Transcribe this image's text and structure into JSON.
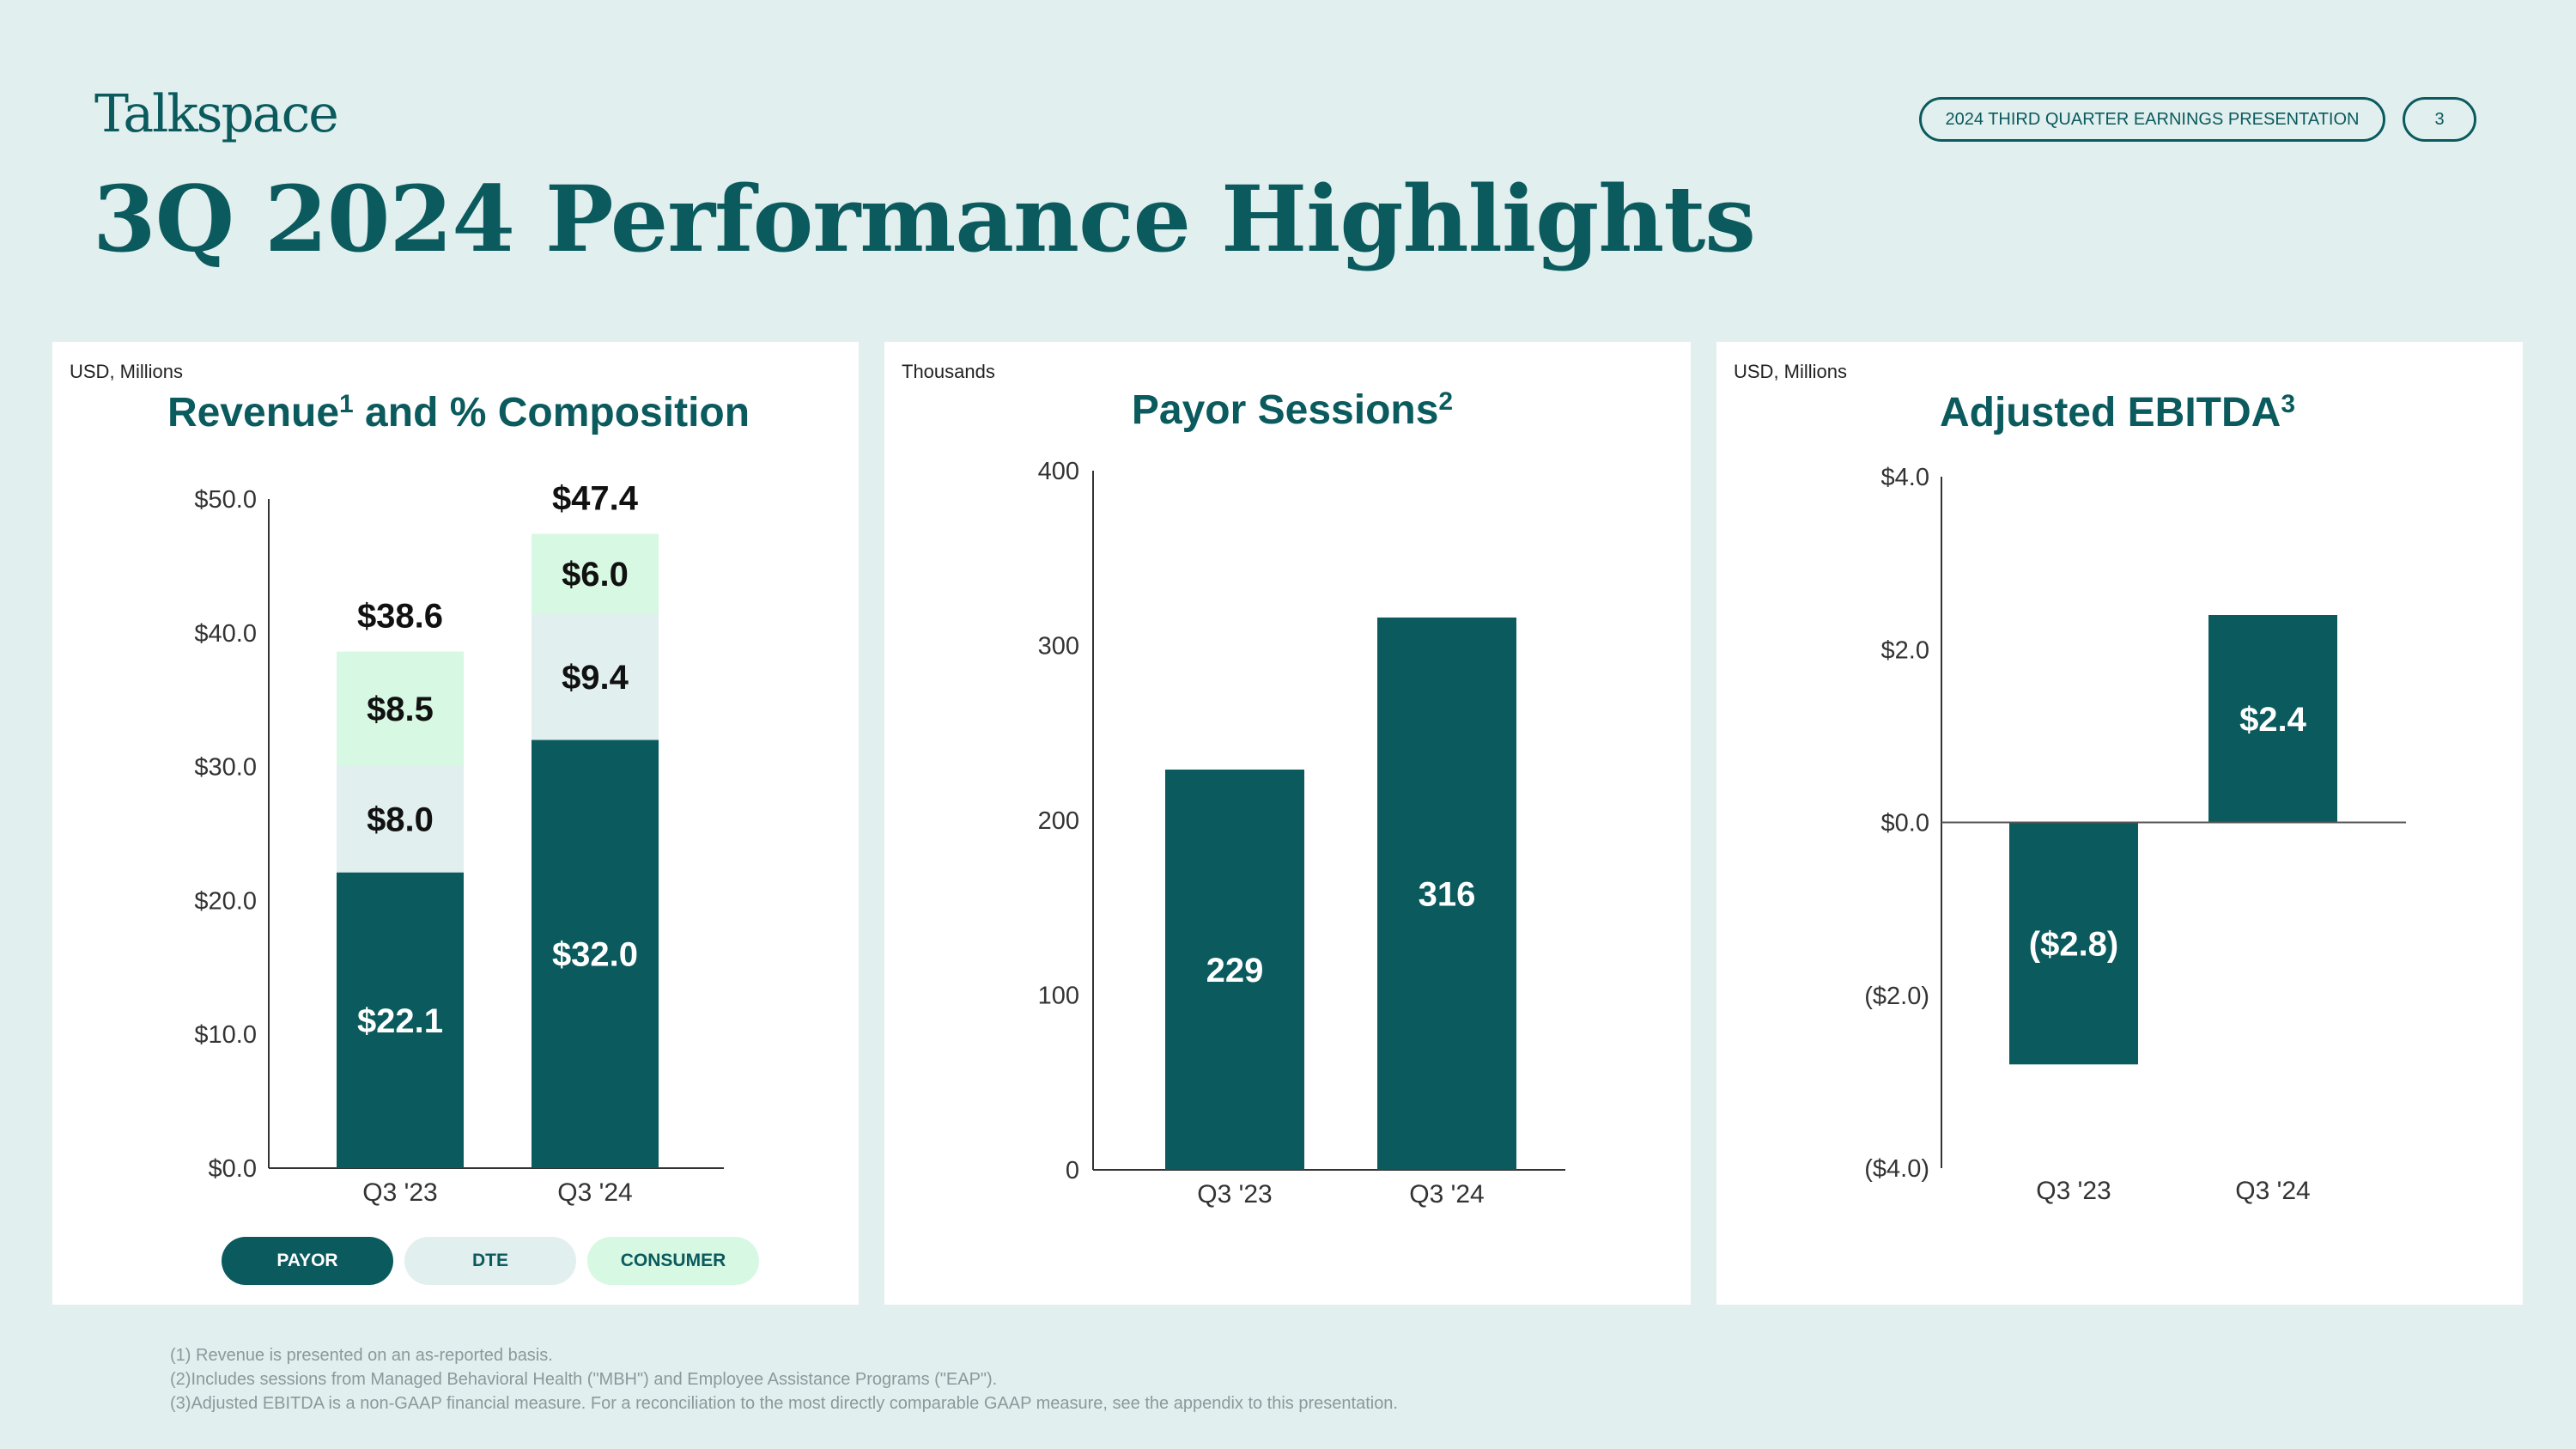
{
  "header": {
    "logo": "Talkspace",
    "title": "3Q 2024 Performance Highlights",
    "presentation_label": "2024 THIRD QUARTER EARNINGS PRESENTATION",
    "page_number": "3"
  },
  "colors": {
    "payor": "#0a5a5e",
    "dte": "#e1efee",
    "consumer": "#d7f8e2",
    "background": "#e1efee"
  },
  "legend": {
    "payor": "PAYOR",
    "dte": "DTE",
    "consumer": "CONSUMER"
  },
  "chart_data": [
    {
      "type": "bar",
      "stacked": true,
      "unit_label": "USD, Millions",
      "title": "Revenue",
      "title_sup": "1",
      "title_suffix": " and % Composition",
      "categories": [
        "Q3 '23",
        "Q3 '24"
      ],
      "series": [
        {
          "name": "PAYOR",
          "values": [
            22.1,
            32.0
          ],
          "labels": [
            "$22.1",
            "$32.0"
          ]
        },
        {
          "name": "DTE",
          "values": [
            8.0,
            9.4
          ],
          "labels": [
            "$8.0",
            "$9.4"
          ]
        },
        {
          "name": "CONSUMER",
          "values": [
            8.5,
            6.0
          ],
          "labels": [
            "$8.5",
            "$6.0"
          ]
        }
      ],
      "totals": [
        38.6,
        47.4
      ],
      "total_labels": [
        "$38.6",
        "$47.4"
      ],
      "ylim": [
        0,
        50
      ],
      "yticks": [
        0,
        10,
        20,
        30,
        40,
        50
      ],
      "ytick_labels": [
        "$0.0",
        "$10.0",
        "$20.0",
        "$30.0",
        "$40.0",
        "$50.0"
      ]
    },
    {
      "type": "bar",
      "unit_label": "Thousands",
      "title": "Payor Sessions",
      "title_sup": "2",
      "title_suffix": "",
      "categories": [
        "Q3 '23",
        "Q3 '24"
      ],
      "values": [
        229,
        316
      ],
      "labels": [
        "229",
        "316"
      ],
      "ylim": [
        0,
        400
      ],
      "yticks": [
        0,
        100,
        200,
        300,
        400
      ],
      "ytick_labels": [
        "0",
        "100",
        "200",
        "300",
        "400"
      ]
    },
    {
      "type": "bar",
      "unit_label": "USD, Millions",
      "title": "Adjusted EBITDA",
      "title_sup": "3",
      "title_suffix": "",
      "categories": [
        "Q3 '23",
        "Q3 '24"
      ],
      "values": [
        -2.8,
        2.4
      ],
      "labels": [
        "($2.8)",
        "$2.4"
      ],
      "ylim": [
        -4,
        4
      ],
      "yticks": [
        -4,
        -2,
        0,
        2,
        4
      ],
      "ytick_labels": [
        "($4.0)",
        "($2.0)",
        "$0.0",
        "$2.0",
        "$4.0"
      ]
    }
  ],
  "footnotes": [
    "(1) Revenue is presented on an as-reported basis.",
    "(2)Includes sessions from Managed Behavioral Health (\"MBH\") and Employee Assistance Programs (\"EAP\").",
    "(3)Adjusted EBITDA is a non-GAAP financial measure. For a reconciliation to the most directly comparable GAAP measure, see the appendix to this presentation."
  ]
}
